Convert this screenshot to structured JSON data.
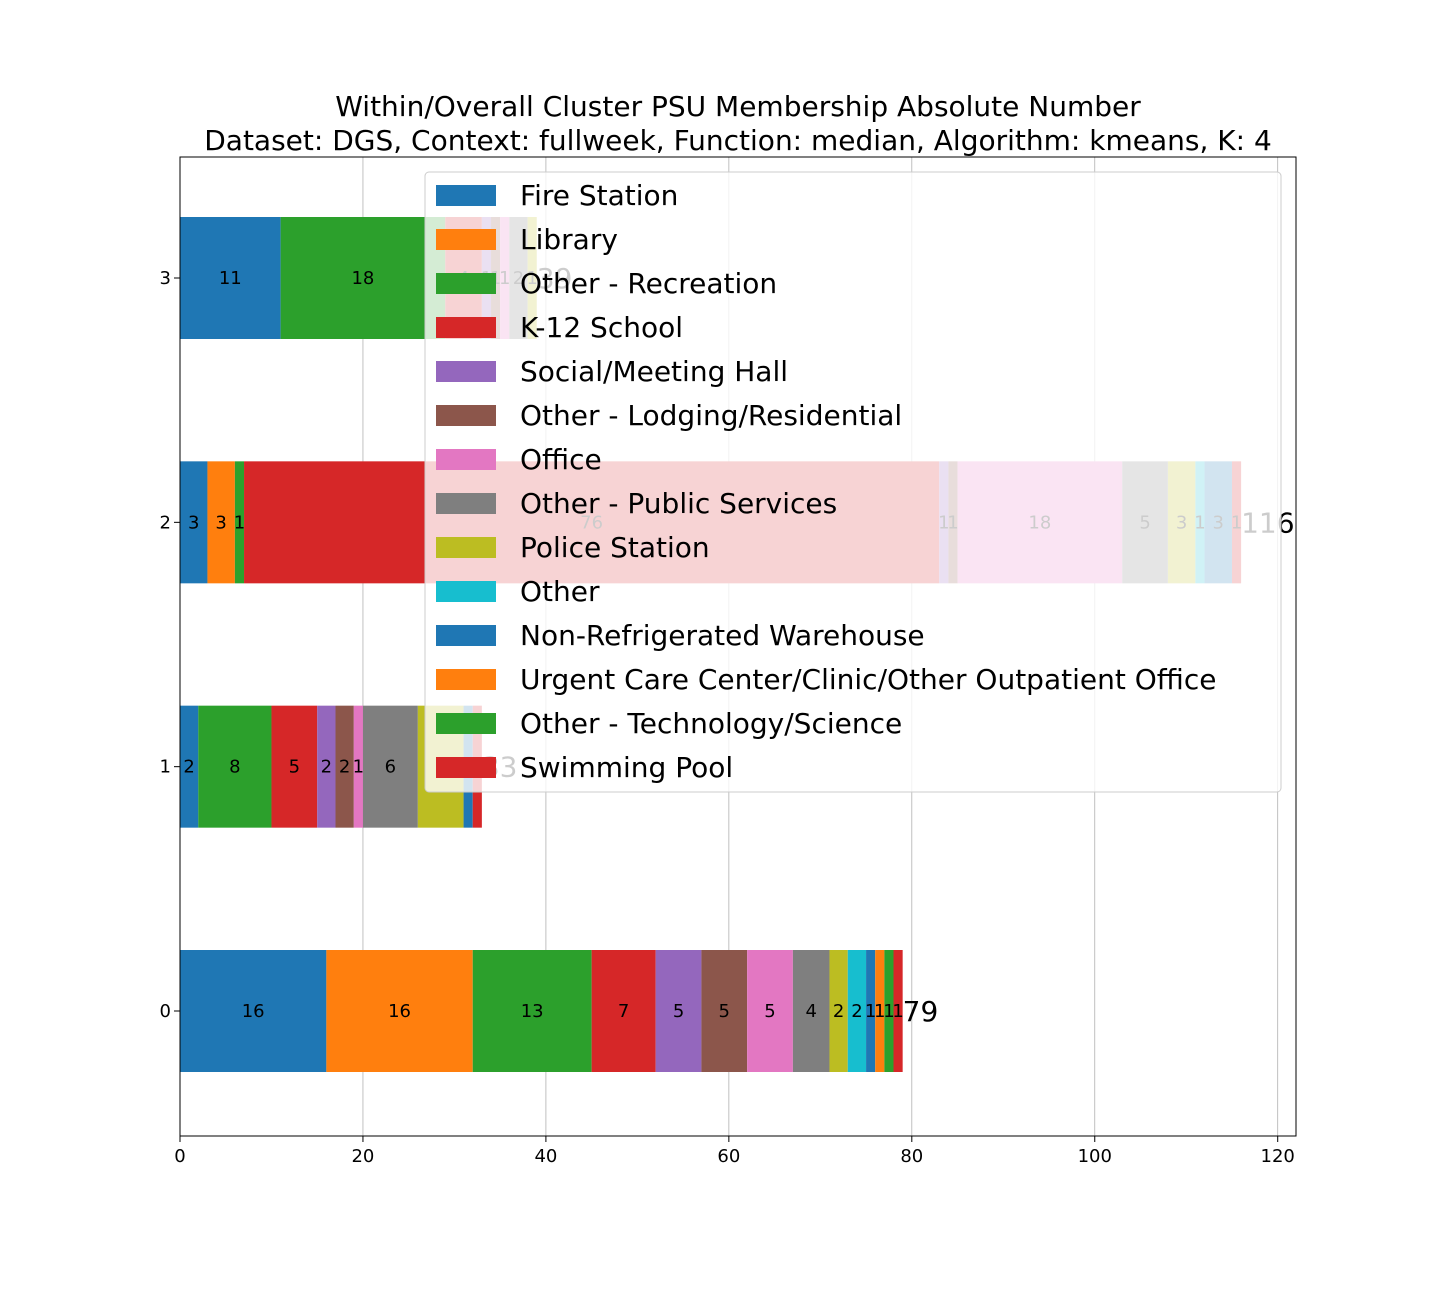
{
  "chart_data": {
    "type": "bar",
    "orientation": "horizontal",
    "stacked": true,
    "title": "Within/Overall Cluster PSU Membership Absolute Number",
    "subtitle": "Dataset: DGS, Context: fullweek, Function: median, Algorithm: kmeans, K: 4",
    "categories": [
      "0",
      "1",
      "2",
      "3"
    ],
    "xlim": [
      0,
      122
    ],
    "xticks": [
      "0",
      "20",
      "40",
      "60",
      "80",
      "100",
      "120"
    ],
    "grid": true,
    "legend_placement": "upper-right",
    "totals": [
      "79",
      "33",
      "116",
      "39"
    ],
    "series": [
      {
        "name": "Fire Station",
        "color": "#1f77b4",
        "values": [
          16,
          2,
          3,
          11
        ]
      },
      {
        "name": "Library",
        "color": "#ff7f0e",
        "values": [
          16,
          0,
          3,
          0
        ]
      },
      {
        "name": "Other - Recreation",
        "color": "#2ca02c",
        "values": [
          13,
          8,
          1,
          18
        ]
      },
      {
        "name": "K-12 School",
        "color": "#d62728",
        "values": [
          7,
          5,
          76,
          4
        ]
      },
      {
        "name": "Social/Meeting Hall",
        "color": "#9467bd",
        "values": [
          5,
          2,
          1,
          1
        ]
      },
      {
        "name": "Other - Lodging/Residential",
        "color": "#8c564b",
        "values": [
          5,
          2,
          1,
          1
        ]
      },
      {
        "name": "Office",
        "color": "#e377c2",
        "values": [
          5,
          1,
          18,
          1
        ]
      },
      {
        "name": "Other - Public Services",
        "color": "#7f7f7f",
        "values": [
          4,
          6,
          5,
          2
        ]
      },
      {
        "name": "Police Station",
        "color": "#bcbd22",
        "values": [
          2,
          5,
          3,
          1
        ]
      },
      {
        "name": "Other",
        "color": "#17becf",
        "values": [
          2,
          0,
          1,
          0
        ]
      },
      {
        "name": "Non-Refrigerated Warehouse",
        "color": "#1f77b4",
        "values": [
          1,
          1,
          3,
          0
        ]
      },
      {
        "name": "Urgent Care Center/Clinic/Other Outpatient Office",
        "color": "#ff7f0e",
        "values": [
          1,
          0,
          0,
          0
        ]
      },
      {
        "name": "Other - Technology/Science",
        "color": "#2ca02c",
        "values": [
          1,
          0,
          0,
          0
        ]
      },
      {
        "name": "Swimming Pool",
        "color": "#d62728",
        "values": [
          1,
          1,
          1,
          0
        ]
      }
    ]
  }
}
